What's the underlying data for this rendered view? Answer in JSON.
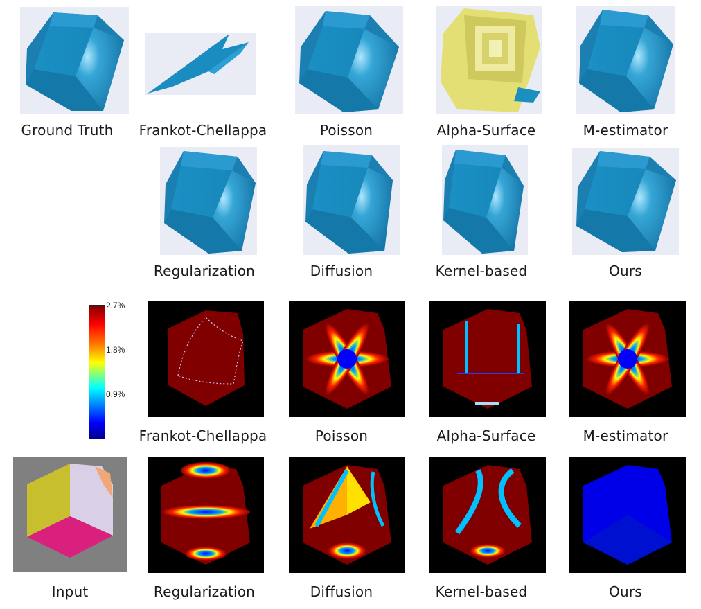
{
  "methods": {
    "ground_truth": "Ground Truth",
    "frankot": "Frankot-Chellappa",
    "poisson": "Poisson",
    "alpha": "Alpha-Surface",
    "mest": "M-estimator",
    "regularization": "Regularization",
    "diffusion": "Diffusion",
    "kernel": "Kernel-based",
    "ours": "Ours",
    "input": "Input"
  },
  "colorbar": {
    "ticks": [
      "2.7%",
      "1.8%",
      "0.9%"
    ]
  },
  "colors": {
    "surface_blue": "#1f8fbf",
    "alpha_yellow": "#e6e07a",
    "error_red": "#800000",
    "error_blue": "#0000ff"
  }
}
